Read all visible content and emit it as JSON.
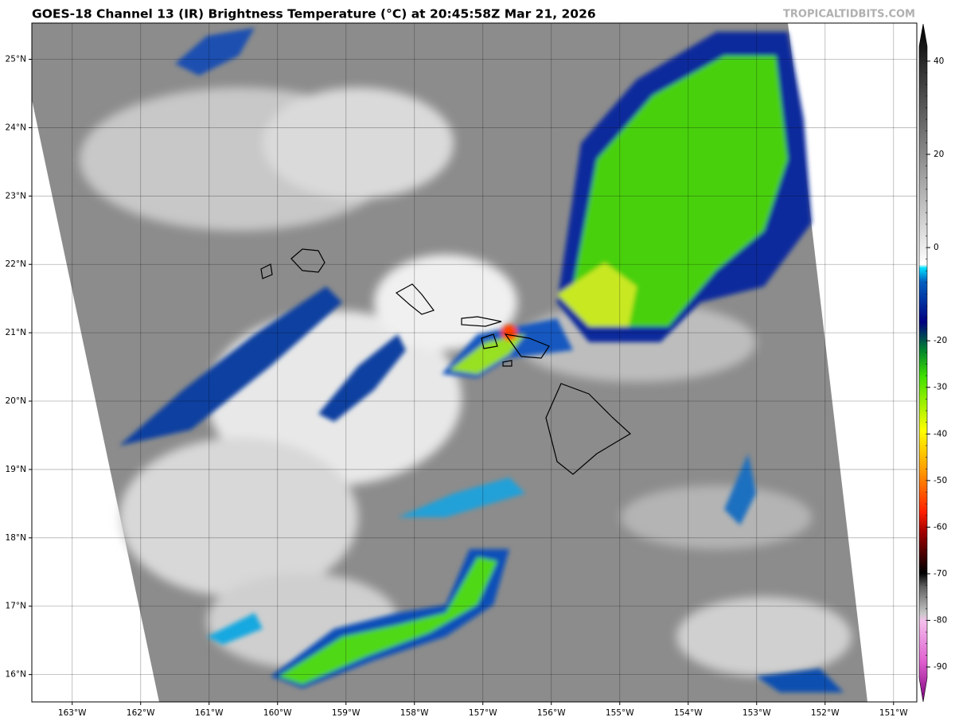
{
  "map": {
    "title": "GOES-18 Channel 13 (IR) Brightness Temperature (°C) at 20:45:58Z Mar 21, 2026",
    "credit": "TROPICALTIDBITS.COM",
    "xlim": [
      -163.59,
      -150.66
    ],
    "ylim": [
      15.6,
      25.53
    ],
    "xticks": [
      {
        "value": -163,
        "label": "163°W"
      },
      {
        "value": -162,
        "label": "162°W"
      },
      {
        "value": -161,
        "label": "161°W"
      },
      {
        "value": -160,
        "label": "160°W"
      },
      {
        "value": -159,
        "label": "159°W"
      },
      {
        "value": -158,
        "label": "158°W"
      },
      {
        "value": -157,
        "label": "157°W"
      },
      {
        "value": -156,
        "label": "156°W"
      },
      {
        "value": -155,
        "label": "155°W"
      },
      {
        "value": -154,
        "label": "154°W"
      },
      {
        "value": -153,
        "label": "153°W"
      },
      {
        "value": -152,
        "label": "152°W"
      },
      {
        "value": -151,
        "label": "151°W"
      }
    ],
    "yticks": [
      {
        "value": 16,
        "label": "16°N"
      },
      {
        "value": 17,
        "label": "17°N"
      },
      {
        "value": 18,
        "label": "18°N"
      },
      {
        "value": 19,
        "label": "19°N"
      },
      {
        "value": 20,
        "label": "20°N"
      },
      {
        "value": 21,
        "label": "21°N"
      },
      {
        "value": 22,
        "label": "22°N"
      },
      {
        "value": 23,
        "label": "23°N"
      },
      {
        "value": 24,
        "label": "24°N"
      },
      {
        "value": 25,
        "label": "25°N"
      }
    ],
    "colorbar": {
      "lim": [
        -97.5,
        48
      ],
      "ticks": [
        40,
        20,
        0,
        -20,
        -30,
        -40,
        -50,
        -60,
        -70,
        -80,
        -90
      ]
    }
  }
}
